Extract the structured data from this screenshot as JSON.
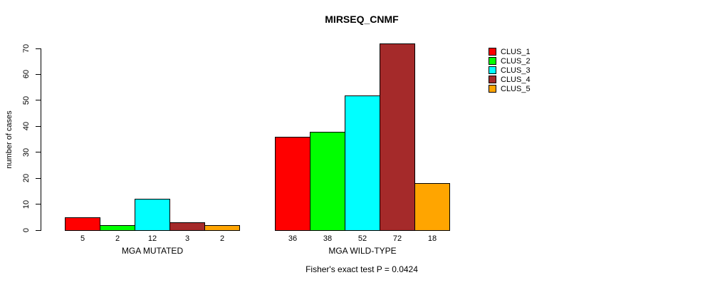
{
  "header": {
    "title": "MIRSEQ_CNMF"
  },
  "chart_data": {
    "type": "bar",
    "title": "MIRSEQ_CNMF",
    "xlabel": "",
    "ylabel": "number of cases",
    "ylim": [
      0,
      70
    ],
    "yticks": [
      0,
      10,
      20,
      30,
      40,
      50,
      60,
      70
    ],
    "grid": false,
    "legend_position": "right",
    "series": [
      {
        "name": "CLUS_1",
        "color": "#FF0000"
      },
      {
        "name": "CLUS_2",
        "color": "#00FF00"
      },
      {
        "name": "CLUS_3",
        "color": "#00FFFF"
      },
      {
        "name": "CLUS_4",
        "color": "#A52A2A"
      },
      {
        "name": "CLUS_5",
        "color": "#FFA500"
      }
    ],
    "categories": [
      "MGA MUTATED",
      "MGA WILD-TYPE"
    ],
    "values": [
      [
        5,
        2,
        12,
        3,
        2
      ],
      [
        36,
        38,
        52,
        72,
        18
      ]
    ],
    "bar_value_labels": [
      [
        "5",
        "2",
        "12",
        "3",
        "2"
      ],
      [
        "36",
        "38",
        "52",
        "72",
        "18"
      ]
    ],
    "bar_outline_color": "#000000",
    "footnote": "Fisher's exact test P = 0.0424"
  }
}
